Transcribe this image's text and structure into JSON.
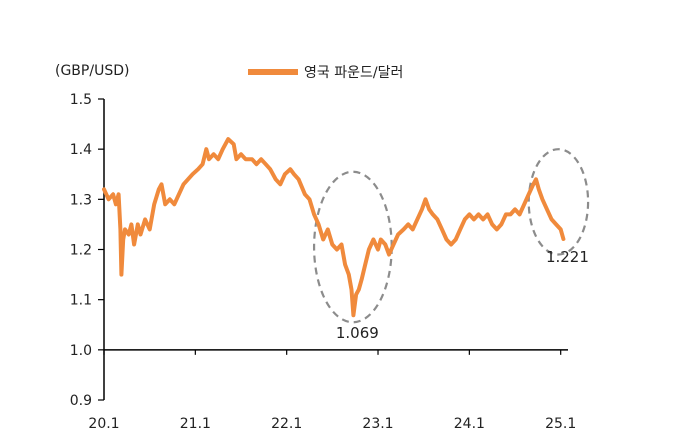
{
  "chart_data": {
    "type": "line",
    "title": "",
    "unit_label": "(GBP/USD)",
    "x_tick_labels": [
      "20.1",
      "21.1",
      "22.1",
      "23.1",
      "24.1",
      "25.1"
    ],
    "y_tick_labels": [
      "1.5",
      "1.4",
      "1.3",
      "1.2",
      "1.1",
      "1.0",
      "0.9"
    ],
    "ylim": [
      0.9,
      1.5
    ],
    "xlim": [
      2020.0,
      2025.08
    ],
    "x_axis_crosses_at": 1.0,
    "grid": false,
    "legend_position": "top-center",
    "series": [
      {
        "name": "영국 파운드/달러",
        "color": "#f08a3c",
        "points": [
          [
            2020.0,
            1.32
          ],
          [
            2020.05,
            1.3
          ],
          [
            2020.1,
            1.31
          ],
          [
            2020.13,
            1.29
          ],
          [
            2020.16,
            1.31
          ],
          [
            2020.18,
            1.24
          ],
          [
            2020.19,
            1.15
          ],
          [
            2020.21,
            1.22
          ],
          [
            2020.23,
            1.24
          ],
          [
            2020.27,
            1.23
          ],
          [
            2020.3,
            1.25
          ],
          [
            2020.33,
            1.21
          ],
          [
            2020.37,
            1.25
          ],
          [
            2020.4,
            1.23
          ],
          [
            2020.45,
            1.26
          ],
          [
            2020.5,
            1.24
          ],
          [
            2020.55,
            1.29
          ],
          [
            2020.6,
            1.32
          ],
          [
            2020.63,
            1.33
          ],
          [
            2020.67,
            1.29
          ],
          [
            2020.72,
            1.3
          ],
          [
            2020.77,
            1.29
          ],
          [
            2020.82,
            1.31
          ],
          [
            2020.87,
            1.33
          ],
          [
            2020.92,
            1.34
          ],
          [
            2020.97,
            1.35
          ],
          [
            2021.03,
            1.36
          ],
          [
            2021.08,
            1.37
          ],
          [
            2021.12,
            1.4
          ],
          [
            2021.15,
            1.38
          ],
          [
            2021.2,
            1.39
          ],
          [
            2021.25,
            1.38
          ],
          [
            2021.3,
            1.4
          ],
          [
            2021.36,
            1.42
          ],
          [
            2021.42,
            1.41
          ],
          [
            2021.45,
            1.38
          ],
          [
            2021.5,
            1.39
          ],
          [
            2021.55,
            1.38
          ],
          [
            2021.62,
            1.38
          ],
          [
            2021.67,
            1.37
          ],
          [
            2021.72,
            1.38
          ],
          [
            2021.77,
            1.37
          ],
          [
            2021.82,
            1.36
          ],
          [
            2021.88,
            1.34
          ],
          [
            2021.93,
            1.33
          ],
          [
            2021.98,
            1.35
          ],
          [
            2022.04,
            1.36
          ],
          [
            2022.08,
            1.35
          ],
          [
            2022.13,
            1.34
          ],
          [
            2022.2,
            1.31
          ],
          [
            2022.25,
            1.3
          ],
          [
            2022.3,
            1.27
          ],
          [
            2022.35,
            1.25
          ],
          [
            2022.4,
            1.22
          ],
          [
            2022.45,
            1.24
          ],
          [
            2022.5,
            1.21
          ],
          [
            2022.55,
            1.2
          ],
          [
            2022.6,
            1.21
          ],
          [
            2022.64,
            1.17
          ],
          [
            2022.68,
            1.15
          ],
          [
            2022.71,
            1.12
          ],
          [
            2022.73,
            1.069
          ],
          [
            2022.76,
            1.11
          ],
          [
            2022.79,
            1.12
          ],
          [
            2022.82,
            1.14
          ],
          [
            2022.86,
            1.17
          ],
          [
            2022.9,
            1.2
          ],
          [
            2022.95,
            1.22
          ],
          [
            2023.0,
            1.2
          ],
          [
            2023.03,
            1.22
          ],
          [
            2023.08,
            1.21
          ],
          [
            2023.12,
            1.19
          ],
          [
            2023.17,
            1.21
          ],
          [
            2023.22,
            1.23
          ],
          [
            2023.28,
            1.24
          ],
          [
            2023.33,
            1.25
          ],
          [
            2023.38,
            1.24
          ],
          [
            2023.43,
            1.26
          ],
          [
            2023.48,
            1.28
          ],
          [
            2023.52,
            1.3
          ],
          [
            2023.56,
            1.28
          ],
          [
            2023.6,
            1.27
          ],
          [
            2023.65,
            1.26
          ],
          [
            2023.7,
            1.24
          ],
          [
            2023.75,
            1.22
          ],
          [
            2023.8,
            1.21
          ],
          [
            2023.85,
            1.22
          ],
          [
            2023.9,
            1.24
          ],
          [
            2023.95,
            1.26
          ],
          [
            2024.0,
            1.27
          ],
          [
            2024.05,
            1.26
          ],
          [
            2024.1,
            1.27
          ],
          [
            2024.15,
            1.26
          ],
          [
            2024.2,
            1.27
          ],
          [
            2024.25,
            1.25
          ],
          [
            2024.3,
            1.24
          ],
          [
            2024.35,
            1.25
          ],
          [
            2024.4,
            1.27
          ],
          [
            2024.45,
            1.27
          ],
          [
            2024.5,
            1.28
          ],
          [
            2024.55,
            1.27
          ],
          [
            2024.6,
            1.29
          ],
          [
            2024.65,
            1.31
          ],
          [
            2024.7,
            1.33
          ],
          [
            2024.73,
            1.34
          ],
          [
            2024.76,
            1.32
          ],
          [
            2024.8,
            1.3
          ],
          [
            2024.85,
            1.28
          ],
          [
            2024.9,
            1.26
          ],
          [
            2024.95,
            1.25
          ],
          [
            2025.0,
            1.24
          ],
          [
            2025.03,
            1.221
          ]
        ]
      }
    ],
    "annotations": [
      {
        "text": "1.069",
        "x": 2022.73,
        "y": 1.069
      },
      {
        "text": "1.221",
        "x": 2025.03,
        "y": 1.221
      }
    ],
    "highlight_circles": [
      {
        "x_range": [
          2022.3,
          2023.15
        ],
        "y_range": [
          1.055,
          1.355
        ]
      },
      {
        "x_range": [
          2024.65,
          2025.3
        ],
        "y_range": [
          1.19,
          1.4
        ]
      }
    ],
    "colors": {
      "line": "#f08a3c",
      "axis": "#000000",
      "circle": "#8c8c8c",
      "text": "#222222"
    }
  }
}
